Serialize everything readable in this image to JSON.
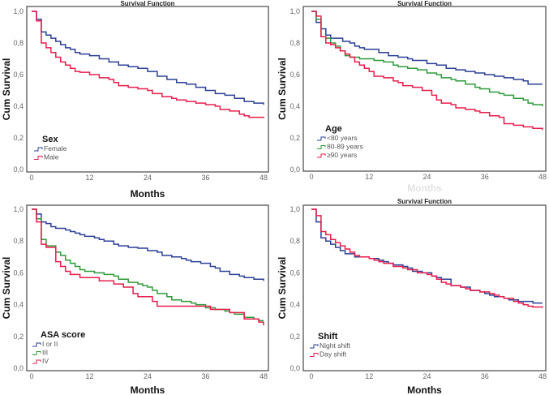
{
  "chart_data": [
    {
      "type": "line",
      "step": true,
      "title": "Survival Function",
      "xlabel": "Months",
      "ylabel": "Cum Survival",
      "xlim": [
        0,
        48
      ],
      "ylim": [
        0,
        1
      ],
      "xticks": [
        "0",
        "12",
        "24",
        "36",
        "48"
      ],
      "yticks": [
        "0,0",
        "0,2",
        "0,4",
        "0,6",
        "0,8",
        "1,0"
      ],
      "legend_title": "Sex",
      "legend_placement": "bottom-left",
      "series": [
        {
          "name": "Female",
          "color": "#2a3f95",
          "x": [
            0,
            1,
            2,
            3,
            4,
            5,
            6,
            7,
            8,
            9,
            10,
            12,
            14,
            16,
            18,
            20,
            22,
            24,
            26,
            28,
            30,
            32,
            34,
            36,
            38,
            40,
            42,
            44,
            46,
            48
          ],
          "y": [
            1.0,
            0.95,
            0.87,
            0.85,
            0.83,
            0.81,
            0.79,
            0.77,
            0.76,
            0.74,
            0.73,
            0.72,
            0.7,
            0.68,
            0.66,
            0.65,
            0.64,
            0.62,
            0.59,
            0.57,
            0.55,
            0.54,
            0.52,
            0.5,
            0.48,
            0.47,
            0.45,
            0.43,
            0.42,
            0.41
          ]
        },
        {
          "name": "Male",
          "color": "#e61d4c",
          "x": [
            0,
            1,
            2,
            3,
            4,
            5,
            6,
            7,
            8,
            9,
            10,
            12,
            14,
            16,
            17,
            18,
            20,
            22,
            24,
            25,
            27,
            29,
            30,
            32,
            34,
            36,
            38,
            39,
            41,
            43,
            44,
            45,
            48
          ],
          "y": [
            1.0,
            0.94,
            0.8,
            0.77,
            0.74,
            0.71,
            0.68,
            0.66,
            0.64,
            0.62,
            0.615,
            0.6,
            0.58,
            0.57,
            0.55,
            0.53,
            0.52,
            0.51,
            0.5,
            0.48,
            0.46,
            0.45,
            0.44,
            0.43,
            0.42,
            0.41,
            0.4,
            0.38,
            0.37,
            0.35,
            0.34,
            0.33,
            0.325
          ]
        }
      ]
    },
    {
      "type": "line",
      "step": true,
      "title": "Survival Function",
      "xlabel": "Months",
      "ylabel": "Cum Survival",
      "xlim": [
        0,
        48
      ],
      "ylim": [
        0,
        1
      ],
      "xticks": [
        "0",
        "12",
        "24",
        "36",
        "48"
      ],
      "yticks": [
        "0,0",
        "0,2",
        "0,4",
        "0,6",
        "0,8",
        "1,0"
      ],
      "legend_title": "Age",
      "legend_placement": "bottom-left",
      "series": [
        {
          "name": "<80 years",
          "color": "#2a3f95",
          "x": [
            0,
            1,
            2,
            3,
            4,
            6,
            6.5,
            8,
            9,
            10,
            11,
            14,
            16,
            18,
            20,
            21,
            24,
            26,
            28,
            30,
            32,
            34,
            36,
            38,
            40,
            42,
            44,
            45,
            48
          ],
          "y": [
            1.0,
            0.93,
            0.89,
            0.85,
            0.83,
            0.83,
            0.81,
            0.8,
            0.78,
            0.77,
            0.76,
            0.74,
            0.72,
            0.71,
            0.7,
            0.69,
            0.67,
            0.66,
            0.64,
            0.63,
            0.62,
            0.61,
            0.6,
            0.59,
            0.58,
            0.57,
            0.56,
            0.54,
            0.54
          ]
        },
        {
          "name": "80-89 years",
          "color": "#2e9a3a",
          "x": [
            0,
            1,
            2,
            3,
            4,
            5,
            6,
            7,
            8,
            10,
            13,
            15,
            17,
            18,
            20,
            22,
            24,
            26,
            27,
            29,
            30,
            32,
            34,
            35,
            37,
            39,
            40,
            42,
            44,
            45,
            46,
            48
          ],
          "y": [
            1.0,
            0.95,
            0.84,
            0.83,
            0.8,
            0.78,
            0.75,
            0.72,
            0.71,
            0.7,
            0.69,
            0.68,
            0.66,
            0.65,
            0.64,
            0.63,
            0.61,
            0.6,
            0.58,
            0.57,
            0.56,
            0.54,
            0.52,
            0.51,
            0.49,
            0.48,
            0.47,
            0.45,
            0.44,
            0.42,
            0.41,
            0.4
          ]
        },
        {
          "name": "≥90 years",
          "color": "#e61d4c",
          "x": [
            0,
            1,
            2,
            3,
            4,
            5,
            6,
            7,
            8,
            9,
            10,
            11,
            12,
            13,
            15,
            17,
            18,
            19,
            21,
            23,
            25,
            26,
            27,
            29,
            30,
            32,
            34,
            35,
            37,
            39,
            40,
            42,
            44,
            46,
            48
          ],
          "y": [
            1.0,
            0.97,
            0.84,
            0.8,
            0.79,
            0.77,
            0.75,
            0.73,
            0.71,
            0.68,
            0.66,
            0.64,
            0.62,
            0.59,
            0.58,
            0.56,
            0.55,
            0.53,
            0.52,
            0.5,
            0.47,
            0.44,
            0.42,
            0.41,
            0.39,
            0.38,
            0.37,
            0.36,
            0.34,
            0.33,
            0.29,
            0.28,
            0.27,
            0.26,
            0.25
          ]
        }
      ]
    },
    {
      "type": "line",
      "step": true,
      "title": "",
      "xlabel": "Months",
      "ylabel": "Cum Survival",
      "xlim": [
        0,
        48
      ],
      "ylim": [
        0,
        1
      ],
      "xticks": [
        "0",
        "12",
        "24",
        "36",
        "48"
      ],
      "yticks": [
        "0,0",
        "0,2",
        "0,4",
        "0,6",
        "0,8",
        "1,0"
      ],
      "legend_title": "ASA score",
      "legend_placement": "bottom-left",
      "series": [
        {
          "name": "I or II",
          "color": "#2a3f95",
          "x": [
            0,
            1,
            2,
            3,
            4,
            5,
            7,
            8,
            9,
            10,
            11,
            13,
            14,
            15,
            17,
            18,
            20,
            22,
            24,
            26,
            27,
            29,
            31,
            32,
            33,
            35,
            37,
            38,
            39,
            41,
            43,
            44,
            46,
            48
          ],
          "y": [
            1.0,
            0.97,
            0.92,
            0.91,
            0.89,
            0.88,
            0.87,
            0.86,
            0.85,
            0.84,
            0.83,
            0.82,
            0.81,
            0.8,
            0.78,
            0.77,
            0.76,
            0.755,
            0.74,
            0.73,
            0.71,
            0.7,
            0.69,
            0.68,
            0.67,
            0.66,
            0.64,
            0.63,
            0.61,
            0.59,
            0.58,
            0.57,
            0.56,
            0.55
          ]
        },
        {
          "name": "III",
          "color": "#2e9a3a",
          "x": [
            0,
            1,
            2,
            3,
            5,
            6,
            7,
            8,
            9,
            10,
            11,
            13,
            15,
            17,
            18,
            20,
            22,
            23,
            24,
            25,
            26,
            28,
            29,
            31,
            33,
            34,
            36,
            38,
            40,
            41,
            42,
            44,
            46,
            47,
            48
          ],
          "y": [
            1.0,
            0.94,
            0.81,
            0.77,
            0.73,
            0.71,
            0.68,
            0.66,
            0.64,
            0.62,
            0.61,
            0.6,
            0.59,
            0.58,
            0.56,
            0.54,
            0.53,
            0.52,
            0.51,
            0.49,
            0.47,
            0.45,
            0.43,
            0.42,
            0.41,
            0.4,
            0.38,
            0.37,
            0.36,
            0.35,
            0.34,
            0.32,
            0.31,
            0.3,
            0.3
          ]
        },
        {
          "name": "IV",
          "color": "#e61d4c",
          "x": [
            0,
            1,
            2,
            3,
            5,
            6,
            7,
            8,
            10,
            14,
            17,
            19,
            21,
            22,
            25,
            26,
            37,
            41,
            44,
            47,
            48
          ],
          "y": [
            1.0,
            0.92,
            0.78,
            0.76,
            0.67,
            0.64,
            0.61,
            0.59,
            0.57,
            0.55,
            0.53,
            0.51,
            0.47,
            0.45,
            0.42,
            0.39,
            0.37,
            0.35,
            0.31,
            0.29,
            0.27
          ]
        }
      ]
    },
    {
      "type": "line",
      "step": true,
      "title": "Survival Function",
      "xlabel": "Months",
      "ylabel": "Cum Survival",
      "xlim": [
        0,
        48
      ],
      "ylim": [
        0,
        1
      ],
      "xticks": [
        "0",
        "12",
        "24",
        "36",
        "48"
      ],
      "yticks": [
        "0,0",
        "0,2",
        "0,4",
        "0,6",
        "0,8",
        "1,0"
      ],
      "legend_title": "Shift",
      "legend_placement": "bottom-left",
      "series": [
        {
          "name": "Night shift",
          "color": "#2a3f95",
          "x": [
            0,
            1,
            2,
            3,
            4,
            5,
            6,
            7,
            9,
            12,
            14,
            15,
            16,
            17,
            19,
            20,
            21,
            23,
            25,
            26,
            27,
            29,
            31,
            33,
            35,
            36,
            37,
            38,
            40,
            41,
            43,
            46,
            48
          ],
          "y": [
            1.0,
            0.92,
            0.82,
            0.8,
            0.78,
            0.76,
            0.74,
            0.72,
            0.7,
            0.69,
            0.68,
            0.67,
            0.66,
            0.65,
            0.64,
            0.63,
            0.61,
            0.6,
            0.58,
            0.57,
            0.56,
            0.52,
            0.51,
            0.49,
            0.48,
            0.47,
            0.46,
            0.45,
            0.44,
            0.43,
            0.42,
            0.41,
            0.41
          ]
        },
        {
          "name": "Day shift",
          "color": "#e61d4c",
          "x": [
            0,
            1,
            2,
            3,
            4,
            5,
            6,
            7,
            8,
            9,
            10,
            12,
            13,
            14,
            15,
            17,
            19,
            20,
            22,
            24,
            25,
            26,
            27,
            28,
            29,
            31,
            32,
            33,
            35,
            37,
            38,
            39,
            40,
            42,
            43,
            44,
            45,
            46,
            48
          ],
          "y": [
            1.0,
            0.96,
            0.86,
            0.84,
            0.81,
            0.79,
            0.77,
            0.75,
            0.73,
            0.71,
            0.7,
            0.69,
            0.68,
            0.67,
            0.66,
            0.64,
            0.63,
            0.62,
            0.6,
            0.59,
            0.58,
            0.56,
            0.54,
            0.53,
            0.52,
            0.51,
            0.5,
            0.49,
            0.48,
            0.47,
            0.46,
            0.45,
            0.44,
            0.42,
            0.41,
            0.4,
            0.39,
            0.385,
            0.38
          ]
        }
      ]
    }
  ]
}
